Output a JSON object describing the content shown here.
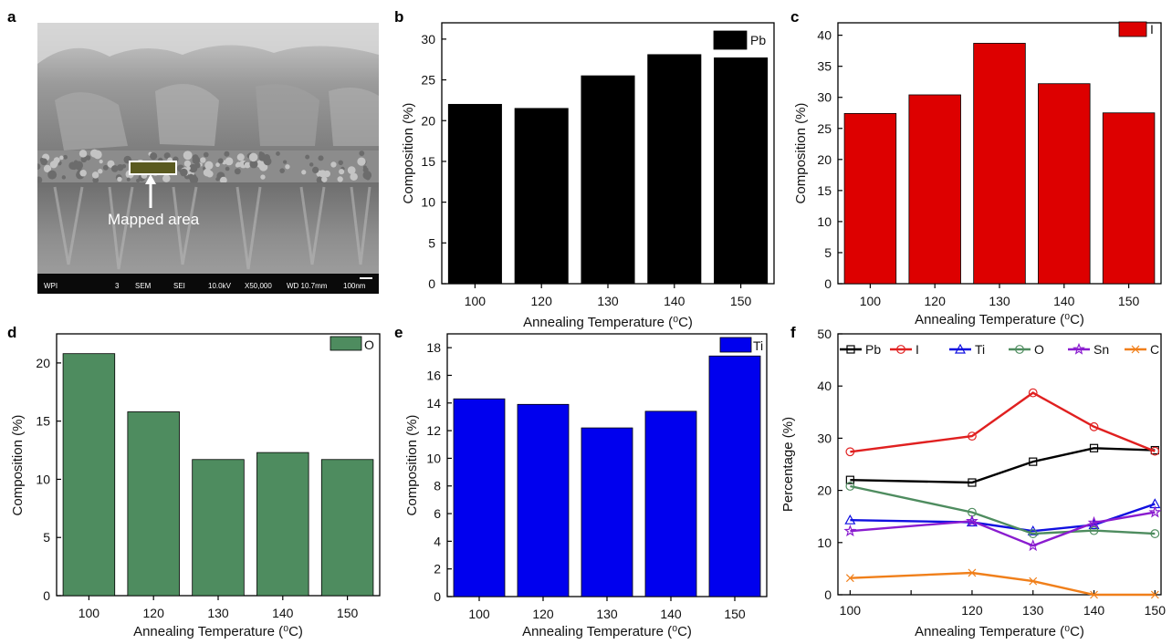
{
  "panel_labels": [
    "a",
    "b",
    "c",
    "d",
    "e",
    "f"
  ],
  "sem": {
    "annotation": "Mapped area",
    "info": [
      "WPI",
      "3",
      "SEM",
      "SEI",
      "10.0kV",
      "X50,000",
      "WD 10.7mm",
      "100nm"
    ]
  },
  "chart_data": [
    {
      "panel": "b",
      "type": "bar",
      "categories": [
        "100",
        "120",
        "130",
        "140",
        "150"
      ],
      "series": [
        {
          "name": "Pb",
          "values": [
            22.0,
            21.5,
            25.5,
            28.1,
            27.7
          ],
          "color": "#000000"
        }
      ],
      "xlabel": "Annealing Temperature (⁰C)",
      "ylabel": "Composition (%)",
      "ylim": [
        0,
        32
      ],
      "yticks": [
        0,
        5,
        10,
        15,
        20,
        25,
        30
      ],
      "legend": "top-right"
    },
    {
      "panel": "c",
      "type": "bar",
      "categories": [
        "100",
        "120",
        "130",
        "140",
        "150"
      ],
      "series": [
        {
          "name": "I",
          "values": [
            27.4,
            30.4,
            38.7,
            32.2,
            27.5
          ],
          "color": "#dd0000"
        }
      ],
      "xlabel": "Annealing Temperature (⁰C)",
      "ylabel": "Composition (%)",
      "ylim": [
        0,
        42
      ],
      "yticks": [
        0,
        5,
        10,
        15,
        20,
        25,
        30,
        35,
        40
      ],
      "legend": "top-right"
    },
    {
      "panel": "d",
      "type": "bar",
      "categories": [
        "100",
        "120",
        "130",
        "140",
        "150"
      ],
      "series": [
        {
          "name": "O",
          "values": [
            20.8,
            15.8,
            11.7,
            12.3,
            11.7
          ],
          "color": "#4e8c5f"
        }
      ],
      "xlabel": "Annealing Temperature (⁰C)",
      "ylabel": "Composition (%)",
      "ylim": [
        0,
        22.5
      ],
      "yticks": [
        0,
        5,
        10,
        15,
        20
      ],
      "legend": "top-right"
    },
    {
      "panel": "e",
      "type": "bar",
      "categories": [
        "100",
        "120",
        "130",
        "140",
        "150"
      ],
      "series": [
        {
          "name": "Ti",
          "values": [
            14.3,
            13.9,
            12.2,
            13.4,
            17.4
          ],
          "color": "#0000ee"
        }
      ],
      "xlabel": "Annealing Temperature (⁰C)",
      "ylabel": "Composition (%)",
      "ylim": [
        0,
        19
      ],
      "yticks": [
        0,
        2,
        4,
        6,
        8,
        10,
        12,
        14,
        16,
        18
      ],
      "legend": "top-right"
    },
    {
      "panel": "f",
      "type": "line",
      "x": [
        100,
        120,
        130,
        140,
        150
      ],
      "series": [
        {
          "name": "Pb",
          "values": [
            22.0,
            21.5,
            25.5,
            28.1,
            27.7
          ],
          "color": "#000000",
          "marker": "square"
        },
        {
          "name": "I",
          "values": [
            27.4,
            30.4,
            38.7,
            32.2,
            27.5
          ],
          "color": "#e02020",
          "marker": "circle"
        },
        {
          "name": "Ti",
          "values": [
            14.3,
            13.9,
            12.2,
            13.4,
            17.4
          ],
          "color": "#1010e0",
          "marker": "triangle"
        },
        {
          "name": "O",
          "values": [
            20.8,
            15.8,
            11.7,
            12.3,
            11.7
          ],
          "color": "#4e8c5f",
          "marker": "circle"
        },
        {
          "name": "Sn",
          "values": [
            12.2,
            14.1,
            9.4,
            13.8,
            15.8
          ],
          "color": "#8a1ccf",
          "marker": "star"
        },
        {
          "name": "C",
          "values": [
            3.2,
            4.2,
            2.6,
            0,
            0
          ],
          "color": "#f07f1a",
          "marker": "cross"
        }
      ],
      "xlabel": "Annealing Temperature (⁰C)",
      "ylabel": "Percentage (%)",
      "xlim": [
        98,
        151
      ],
      "ylim": [
        0,
        50
      ],
      "xticks": [
        100,
        110,
        120,
        130,
        140,
        150
      ],
      "yticks": [
        0,
        10,
        20,
        30,
        40,
        50
      ],
      "legend": "top"
    }
  ]
}
